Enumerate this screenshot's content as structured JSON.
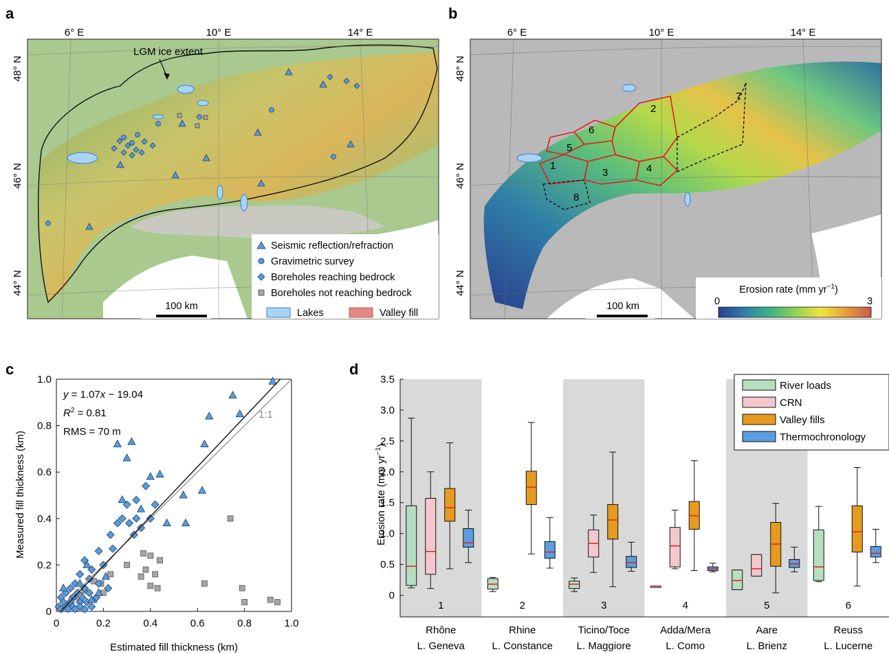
{
  "panels": {
    "a": "a",
    "b": "b",
    "c": "c",
    "d": "d"
  },
  "map_a": {
    "lon_labels": [
      "6° E",
      "10° E",
      "14° E"
    ],
    "lat_labels": [
      "48° N",
      "46° N",
      "44° N"
    ],
    "annotation": "LGM ice extent",
    "scale_bar": "100 km",
    "legend": [
      {
        "label": "Seismic reflection/refraction",
        "symbol": "triangle",
        "color": "#4a8ad4"
      },
      {
        "label": "Gravimetric survey",
        "symbol": "circle",
        "color": "#4a8ad4"
      },
      {
        "label": "Boreholes reaching bedrock",
        "symbol": "diamond",
        "color": "#4a8ad4"
      },
      {
        "label": "Boreholes not reaching bedrock",
        "symbol": "square",
        "color": "#a6a6a6"
      }
    ],
    "legend_areas": [
      {
        "label": "Lakes",
        "color": "#a9d4f2"
      },
      {
        "label": "Valley fill",
        "color": "#e08a86"
      }
    ]
  },
  "map_b": {
    "lon_labels": [
      "6° E",
      "10° E",
      "14° E"
    ],
    "lat_labels": [
      "48° N",
      "46° N",
      "44° N"
    ],
    "scale_bar": "100 km",
    "colorbar_title": "Erosion rate (mm yr",
    "colorbar_exponent": "−1",
    "colorbar_min": "0",
    "colorbar_max": "3",
    "colorbar_colors": [
      "#2a3f8f",
      "#2f7fa8",
      "#3ab28c",
      "#8fd155",
      "#f0e53a",
      "#e8a23a",
      "#c8584a"
    ],
    "region_labels": [
      "1",
      "2",
      "3",
      "4",
      "5",
      "6",
      "7",
      "8"
    ]
  },
  "chart_data": [
    {
      "type": "scatter",
      "xlabel": "Estimated fill thickness (km)",
      "ylabel": "Measured fill thickness (km)",
      "xlim": [
        0,
        1.0
      ],
      "ylim": [
        0,
        1.0
      ],
      "x_ticks": [
        "0",
        "0.2",
        "0.4",
        "0.6",
        "0.8",
        "1.0"
      ],
      "y_ticks": [
        "0",
        "0.2",
        "0.4",
        "0.6",
        "0.8",
        "1.0"
      ],
      "annotations": {
        "eq_pre": "y",
        "eq_mid": " = 1.07",
        "eq_x": "x",
        "eq_post": " − 19.04",
        "r2_r": "R",
        "r2_sup": "2",
        "r2_val": " = 0.81",
        "rms": "RMS = 70 m",
        "one_to_one": "1:1"
      },
      "fit_line": {
        "slope": 1.07,
        "intercept_m": -19.04
      },
      "series": [
        {
          "symbol": "triangle",
          "color": "#5b9bd5",
          "points": [
            [
              0.92,
              0.99
            ],
            [
              0.75,
              0.93
            ],
            [
              0.78,
              0.85
            ],
            [
              0.65,
              0.84
            ],
            [
              0.26,
              0.72
            ],
            [
              0.32,
              0.73
            ],
            [
              0.63,
              0.72
            ],
            [
              0.3,
              0.66
            ],
            [
              0.4,
              0.58
            ],
            [
              0.44,
              0.59
            ],
            [
              0.62,
              0.52
            ],
            [
              0.54,
              0.5
            ],
            [
              0.28,
              0.48
            ],
            [
              0.36,
              0.44
            ],
            [
              0.47,
              0.38
            ],
            [
              0.55,
              0.38
            ],
            [
              0.13,
              0.2
            ],
            [
              0.21,
              0.15
            ],
            [
              0.18,
              0.08
            ],
            [
              0.1,
              0.12
            ],
            [
              0.06,
              0.05
            ],
            [
              0.03,
              0.1
            ],
            [
              0.15,
              0.05
            ]
          ]
        },
        {
          "symbol": "diamond",
          "color": "#5b9bd5",
          "points": [
            [
              0.38,
              0.54
            ],
            [
              0.34,
              0.48
            ],
            [
              0.3,
              0.46
            ],
            [
              0.42,
              0.46
            ],
            [
              0.28,
              0.4
            ],
            [
              0.34,
              0.4
            ],
            [
              0.4,
              0.4
            ],
            [
              0.26,
              0.38
            ],
            [
              0.31,
              0.38
            ],
            [
              0.36,
              0.36
            ],
            [
              0.23,
              0.33
            ],
            [
              0.33,
              0.33
            ],
            [
              0.18,
              0.26
            ],
            [
              0.24,
              0.27
            ],
            [
              0.12,
              0.22
            ],
            [
              0.2,
              0.2
            ],
            [
              0.15,
              0.18
            ],
            [
              0.1,
              0.16
            ],
            [
              0.14,
              0.14
            ],
            [
              0.08,
              0.12
            ],
            [
              0.18,
              0.12
            ],
            [
              0.06,
              0.1
            ],
            [
              0.12,
              0.1
            ],
            [
              0.22,
              0.1
            ],
            [
              0.04,
              0.08
            ],
            [
              0.09,
              0.08
            ],
            [
              0.14,
              0.08
            ],
            [
              0.02,
              0.06
            ],
            [
              0.07,
              0.06
            ],
            [
              0.11,
              0.06
            ],
            [
              0.17,
              0.06
            ],
            [
              0.03,
              0.04
            ],
            [
              0.06,
              0.04
            ],
            [
              0.1,
              0.04
            ],
            [
              0.13,
              0.04
            ],
            [
              0.01,
              0.02
            ],
            [
              0.04,
              0.02
            ],
            [
              0.07,
              0.02
            ],
            [
              0.1,
              0.02
            ],
            [
              0.15,
              0.02
            ],
            [
              0.02,
              0.01
            ],
            [
              0.05,
              0.01
            ],
            [
              0.08,
              0.01
            ],
            [
              0.12,
              0.01
            ]
          ]
        },
        {
          "symbol": "square",
          "color": "#a6a6a6",
          "points": [
            [
              0.74,
              0.4
            ],
            [
              0.63,
              0.12
            ],
            [
              0.79,
              0.1
            ],
            [
              0.8,
              0.04
            ],
            [
              0.91,
              0.05
            ],
            [
              0.94,
              0.04
            ],
            [
              0.37,
              0.25
            ],
            [
              0.4,
              0.24
            ],
            [
              0.44,
              0.22
            ],
            [
              0.3,
              0.2
            ],
            [
              0.38,
              0.18
            ],
            [
              0.42,
              0.16
            ],
            [
              0.36,
              0.15
            ],
            [
              0.4,
              0.11
            ],
            [
              0.43,
              0.1
            ],
            [
              0.23,
              0.16
            ],
            [
              0.19,
              0.12
            ],
            [
              0.16,
              0.13
            ],
            [
              0.2,
              0.08
            ],
            [
              0.12,
              0.09
            ],
            [
              0.08,
              0.06
            ],
            [
              0.16,
              0.05
            ],
            [
              0.05,
              0.02
            ]
          ]
        }
      ]
    },
    {
      "type": "box",
      "ylabel": "Erosion rate (mm yr",
      "ylabel_exponent": "−1",
      "ylim": [
        -0.35,
        3.5
      ],
      "y_ticks": [
        "0",
        "0.5",
        "1.0",
        "1.5",
        "2.0",
        "2.5",
        "3.0",
        "3.5"
      ],
      "categories": [
        {
          "num": "1",
          "name1": "Rhône",
          "name2": "L. Geneva",
          "shaded": true
        },
        {
          "num": "2",
          "name1": "Rhine",
          "name2": "L. Constance",
          "shaded": false
        },
        {
          "num": "3",
          "name1": "Ticino/Toce",
          "name2": "L. Maggiore",
          "shaded": true
        },
        {
          "num": "4",
          "name1": "Adda/Mera",
          "name2": "L. Como",
          "shaded": false
        },
        {
          "num": "5",
          "name1": "Aare",
          "name2": "L. Brienz",
          "shaded": true
        },
        {
          "num": "6",
          "name1": "Reuss",
          "name2": "L. Lucerne",
          "shaded": false
        }
      ],
      "series": [
        {
          "name": "River loads",
          "color": "#b5dfc0",
          "boxes": [
            [
              0.12,
              0.16,
              0.47,
              1.45,
              2.87
            ],
            [
              0.06,
              0.1,
              0.18,
              0.27,
              0.29
            ],
            [
              0.06,
              0.11,
              0.18,
              0.23,
              0.28
            ],
            [
              0.15,
              0.15,
              0.15,
              0.15,
              0.15
            ],
            [
              0.09,
              0.09,
              0.24,
              0.41,
              0.41
            ],
            [
              0.22,
              0.24,
              0.46,
              1.06,
              1.44
            ]
          ]
        },
        {
          "name": "CRN",
          "color": "#f4c7cd",
          "boxes": [
            [
              0.11,
              0.34,
              0.71,
              1.57,
              2.0
            ],
            null,
            [
              0.37,
              0.62,
              0.84,
              1.06,
              1.3
            ],
            [
              0.43,
              0.46,
              0.8,
              1.1,
              1.38
            ],
            [
              0.31,
              0.31,
              0.43,
              0.66,
              0.66
            ],
            null
          ]
        },
        {
          "name": "Valley fills",
          "color": "#e59b1e",
          "boxes": [
            [
              0.43,
              1.2,
              1.42,
              1.73,
              2.47
            ],
            [
              0.67,
              1.47,
              1.75,
              2.01,
              2.8
            ],
            [
              0.14,
              0.91,
              1.22,
              1.47,
              2.32
            ],
            [
              0.4,
              1.07,
              1.29,
              1.52,
              2.18
            ],
            [
              0.04,
              0.47,
              0.83,
              1.18,
              1.49
            ],
            [
              0.15,
              0.7,
              1.03,
              1.45,
              2.07
            ]
          ]
        },
        {
          "name": "Thermochronology",
          "color": "#5b9ee0",
          "boxes": [
            [
              0.53,
              0.78,
              0.85,
              1.08,
              1.38
            ],
            [
              0.44,
              0.6,
              0.7,
              0.87,
              1.26
            ],
            [
              0.39,
              0.45,
              0.53,
              0.63,
              0.86
            ],
            [
              0.38,
              0.4,
              0.43,
              0.46,
              0.52
            ],
            [
              0.38,
              0.45,
              0.51,
              0.58,
              0.78
            ],
            [
              0.53,
              0.62,
              0.68,
              0.79,
              1.07
            ]
          ]
        }
      ]
    }
  ]
}
